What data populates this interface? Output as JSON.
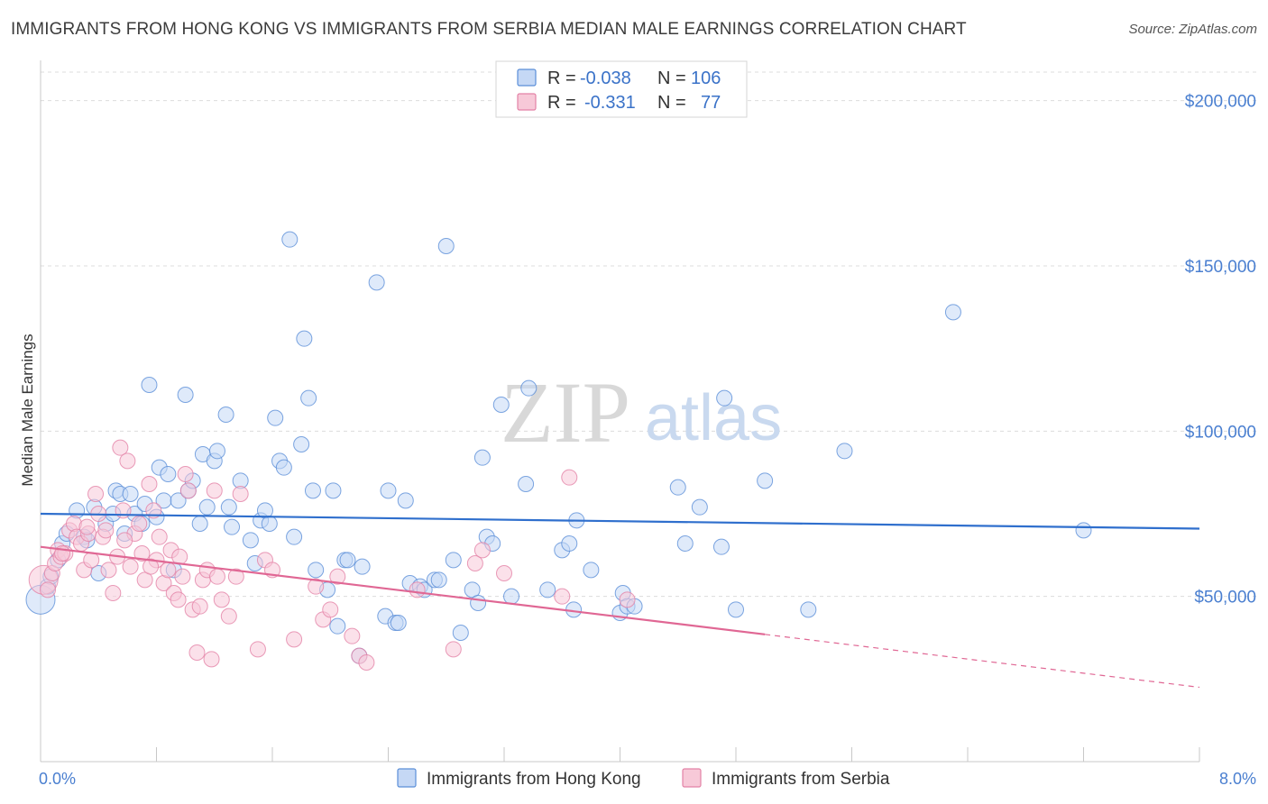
{
  "header": {
    "title": "IMMIGRANTS FROM HONG KONG VS IMMIGRANTS FROM SERBIA MEDIAN MALE EARNINGS CORRELATION CHART",
    "source": "Source: ZipAtlas.com"
  },
  "watermark": {
    "zip": "ZIP",
    "atlas": "atlas"
  },
  "legend": {
    "r_label": "R =",
    "n_label": "N =",
    "rows": [
      {
        "r": "-0.038",
        "n": "106",
        "fill": "#c5d8f5",
        "stroke": "#5b8ed8"
      },
      {
        "r": "-0.331",
        "n": "77",
        "fill": "#f7c9d8",
        "stroke": "#e382a6"
      }
    ]
  },
  "chart_data": {
    "type": "scatter",
    "title": "IMMIGRANTS FROM HONG KONG VS IMMIGRANTS FROM SERBIA MEDIAN MALE EARNINGS CORRELATION CHART",
    "xlabel": "",
    "ylabel": "Median Male Earnings",
    "xlim": [
      0,
      8
    ],
    "ylim": [
      0,
      210000
    ],
    "x_tick_labels": [
      "0.0%",
      "8.0%"
    ],
    "y_ticks": [
      50000,
      100000,
      150000,
      200000
    ],
    "y_tick_labels": [
      "$50,000",
      "$100,000",
      "$150,000",
      "$200,000"
    ],
    "grid": true,
    "legend_position": "top-center",
    "series": [
      {
        "name": "Immigrants from Hong Kong",
        "color": "#5b8ed8",
        "fill": "#c5d8f5",
        "trend": {
          "x": [
            0,
            8
          ],
          "y": [
            75000,
            70500
          ],
          "color": "#2f6fcd"
        },
        "points": [
          [
            0.0,
            49000
          ],
          [
            0.05,
            53000
          ],
          [
            0.07,
            56000
          ],
          [
            0.12,
            61000
          ],
          [
            0.15,
            66000
          ],
          [
            0.18,
            69000
          ],
          [
            0.25,
            76000
          ],
          [
            0.3,
            68000
          ],
          [
            0.32,
            67000
          ],
          [
            0.37,
            77000
          ],
          [
            0.4,
            57000
          ],
          [
            0.45,
            72000
          ],
          [
            0.5,
            75000
          ],
          [
            0.52,
            82000
          ],
          [
            0.55,
            81000
          ],
          [
            0.58,
            69000
          ],
          [
            0.62,
            81000
          ],
          [
            0.65,
            75000
          ],
          [
            0.7,
            72000
          ],
          [
            0.72,
            78000
          ],
          [
            0.75,
            114000
          ],
          [
            0.8,
            74000
          ],
          [
            0.82,
            89000
          ],
          [
            0.85,
            79000
          ],
          [
            0.88,
            87000
          ],
          [
            0.92,
            58000
          ],
          [
            0.95,
            79000
          ],
          [
            1.0,
            111000
          ],
          [
            1.02,
            82000
          ],
          [
            1.05,
            85000
          ],
          [
            1.1,
            72000
          ],
          [
            1.12,
            93000
          ],
          [
            1.15,
            77000
          ],
          [
            1.2,
            91000
          ],
          [
            1.22,
            94000
          ],
          [
            1.28,
            105000
          ],
          [
            1.3,
            77000
          ],
          [
            1.32,
            71000
          ],
          [
            1.38,
            85000
          ],
          [
            1.45,
            67000
          ],
          [
            1.48,
            60000
          ],
          [
            1.52,
            73000
          ],
          [
            1.55,
            76000
          ],
          [
            1.58,
            72000
          ],
          [
            1.62,
            104000
          ],
          [
            1.65,
            91000
          ],
          [
            1.68,
            89000
          ],
          [
            1.72,
            158000
          ],
          [
            1.75,
            68000
          ],
          [
            1.8,
            96000
          ],
          [
            1.82,
            128000
          ],
          [
            1.85,
            110000
          ],
          [
            1.88,
            82000
          ],
          [
            1.9,
            58000
          ],
          [
            1.98,
            52000
          ],
          [
            2.02,
            82000
          ],
          [
            2.05,
            41000
          ],
          [
            2.1,
            61000
          ],
          [
            2.12,
            61000
          ],
          [
            2.2,
            32000
          ],
          [
            2.22,
            59000
          ],
          [
            2.32,
            145000
          ],
          [
            2.38,
            44000
          ],
          [
            2.4,
            82000
          ],
          [
            2.45,
            42000
          ],
          [
            2.47,
            42000
          ],
          [
            2.52,
            79000
          ],
          [
            2.55,
            54000
          ],
          [
            2.62,
            53000
          ],
          [
            2.65,
            52000
          ],
          [
            2.72,
            55000
          ],
          [
            2.75,
            55000
          ],
          [
            2.8,
            156000
          ],
          [
            2.85,
            61000
          ],
          [
            2.9,
            39000
          ],
          [
            2.98,
            52000
          ],
          [
            3.02,
            48000
          ],
          [
            3.05,
            92000
          ],
          [
            3.08,
            68000
          ],
          [
            3.12,
            66000
          ],
          [
            3.18,
            108000
          ],
          [
            3.25,
            50000
          ],
          [
            3.35,
            84000
          ],
          [
            3.37,
            113000
          ],
          [
            3.5,
            52000
          ],
          [
            3.6,
            64000
          ],
          [
            3.65,
            66000
          ],
          [
            3.68,
            46000
          ],
          [
            3.7,
            73000
          ],
          [
            3.8,
            58000
          ],
          [
            4.0,
            45000
          ],
          [
            4.02,
            51000
          ],
          [
            4.05,
            47000
          ],
          [
            4.1,
            47000
          ],
          [
            4.4,
            83000
          ],
          [
            4.45,
            66000
          ],
          [
            4.55,
            77000
          ],
          [
            4.7,
            65000
          ],
          [
            4.72,
            110000
          ],
          [
            4.8,
            46000
          ],
          [
            5.0,
            85000
          ],
          [
            5.3,
            46000
          ],
          [
            5.55,
            94000
          ],
          [
            6.3,
            136000
          ],
          [
            7.2,
            70000
          ]
        ]
      },
      {
        "name": "Immigrants from Serbia",
        "color": "#e382a6",
        "fill": "#f7c9d8",
        "trend": {
          "x": [
            0,
            5.0
          ],
          "y": [
            65000,
            38500
          ],
          "dash_to": [
            8,
            22500
          ],
          "color": "#e06794"
        },
        "points": [
          [
            0.02,
            55000
          ],
          [
            0.05,
            52000
          ],
          [
            0.08,
            57000
          ],
          [
            0.1,
            60000
          ],
          [
            0.12,
            64000
          ],
          [
            0.14,
            62000
          ],
          [
            0.17,
            63000
          ],
          [
            0.2,
            70000
          ],
          [
            0.23,
            72000
          ],
          [
            0.25,
            68000
          ],
          [
            0.28,
            66000
          ],
          [
            0.3,
            58000
          ],
          [
            0.33,
            69000
          ],
          [
            0.35,
            61000
          ],
          [
            0.38,
            81000
          ],
          [
            0.4,
            75000
          ],
          [
            0.43,
            68000
          ],
          [
            0.45,
            70000
          ],
          [
            0.47,
            58000
          ],
          [
            0.5,
            51000
          ],
          [
            0.53,
            62000
          ],
          [
            0.55,
            95000
          ],
          [
            0.57,
            76000
          ],
          [
            0.6,
            91000
          ],
          [
            0.62,
            59000
          ],
          [
            0.65,
            69000
          ],
          [
            0.68,
            72000
          ],
          [
            0.7,
            63000
          ],
          [
            0.72,
            55000
          ],
          [
            0.75,
            84000
          ],
          [
            0.78,
            76000
          ],
          [
            0.8,
            61000
          ],
          [
            0.82,
            68000
          ],
          [
            0.85,
            54000
          ],
          [
            0.88,
            58000
          ],
          [
            0.9,
            64000
          ],
          [
            0.92,
            51000
          ],
          [
            0.95,
            49000
          ],
          [
            0.98,
            56000
          ],
          [
            1.0,
            87000
          ],
          [
            1.02,
            82000
          ],
          [
            1.05,
            46000
          ],
          [
            1.08,
            33000
          ],
          [
            1.1,
            47000
          ],
          [
            1.12,
            55000
          ],
          [
            1.15,
            58000
          ],
          [
            1.18,
            31000
          ],
          [
            1.2,
            82000
          ],
          [
            1.25,
            49000
          ],
          [
            1.3,
            44000
          ],
          [
            1.35,
            56000
          ],
          [
            1.38,
            81000
          ],
          [
            1.5,
            34000
          ],
          [
            1.55,
            61000
          ],
          [
            1.6,
            58000
          ],
          [
            1.75,
            37000
          ],
          [
            1.9,
            53000
          ],
          [
            1.95,
            43000
          ],
          [
            2.0,
            46000
          ],
          [
            2.05,
            56000
          ],
          [
            2.15,
            38000
          ],
          [
            2.2,
            32000
          ],
          [
            2.25,
            30000
          ],
          [
            2.85,
            34000
          ],
          [
            3.0,
            60000
          ],
          [
            3.05,
            64000
          ],
          [
            3.6,
            50000
          ],
          [
            3.65,
            86000
          ],
          [
            4.05,
            49000
          ],
          [
            0.15,
            63000
          ],
          [
            0.32,
            71000
          ],
          [
            0.58,
            67000
          ],
          [
            0.76,
            59000
          ],
          [
            0.96,
            62000
          ],
          [
            1.22,
            56000
          ],
          [
            2.6,
            52000
          ],
          [
            3.2,
            57000
          ]
        ]
      }
    ]
  },
  "bottom_legend": {
    "items": [
      {
        "label": "Immigrants from Hong Kong",
        "fill": "#c5d8f5",
        "stroke": "#5b8ed8"
      },
      {
        "label": "Immigrants from Serbia",
        "fill": "#f7c9d8",
        "stroke": "#e382a6"
      }
    ]
  }
}
